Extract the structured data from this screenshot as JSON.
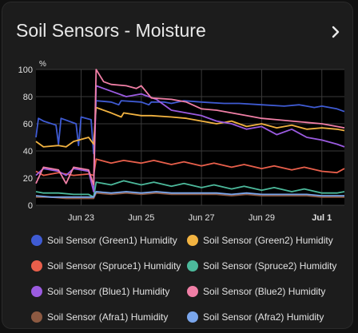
{
  "card": {
    "title": "Soil Sensors - Moisture",
    "more_icon": "chevron-right-icon"
  },
  "chart_data": {
    "type": "line",
    "title": "Soil Sensors - Moisture",
    "ylabel": "%",
    "ylim": [
      0,
      100
    ],
    "yticks": [
      0,
      20,
      40,
      60,
      80,
      100
    ],
    "xlim": [
      "2023-06-21T12:00",
      "2023-07-01T18:00"
    ],
    "xticks": [
      {
        "date": "2023-06-23",
        "label": "Jun 23",
        "bold": false
      },
      {
        "date": "2023-06-25",
        "label": "Jun 25",
        "bold": false
      },
      {
        "date": "2023-06-27",
        "label": "Jun 27",
        "bold": false
      },
      {
        "date": "2023-06-29",
        "label": "Jun 29",
        "bold": false
      },
      {
        "date": "2023-07-01",
        "label": "Jul 1",
        "bold": true
      }
    ],
    "grid": true,
    "legend_position": "bottom",
    "series": [
      {
        "name": "Soil Sensor (Green1) Humidity",
        "color": "#3f5bd3",
        "points": [
          [
            "2023-06-21T12:00",
            50
          ],
          [
            "2023-06-21T14:00",
            64
          ],
          [
            "2023-06-21T18:00",
            62
          ],
          [
            "2023-06-22T04:00",
            59
          ],
          [
            "2023-06-22T06:00",
            45
          ],
          [
            "2023-06-22T08:00",
            64
          ],
          [
            "2023-06-22T20:00",
            60
          ],
          [
            "2023-06-22T22:00",
            44
          ],
          [
            "2023-06-23T00:00",
            65
          ],
          [
            "2023-06-23T08:00",
            63
          ],
          [
            "2023-06-23T10:00",
            38
          ],
          [
            "2023-06-23T12:00",
            77
          ],
          [
            "2023-06-24T00:00",
            76
          ],
          [
            "2023-06-24T06:00",
            74
          ],
          [
            "2023-06-24T08:00",
            77
          ],
          [
            "2023-06-25T00:00",
            76
          ],
          [
            "2023-06-25T06:00",
            74
          ],
          [
            "2023-06-25T08:00",
            76
          ],
          [
            "2023-06-25T18:00",
            76
          ],
          [
            "2023-06-26T00:00",
            75
          ],
          [
            "2023-06-26T10:00",
            77
          ],
          [
            "2023-06-27T00:00",
            76
          ],
          [
            "2023-06-27T18:00",
            75
          ],
          [
            "2023-06-28T06:00",
            75
          ],
          [
            "2023-06-29T00:00",
            74
          ],
          [
            "2023-06-29T18:00",
            73
          ],
          [
            "2023-06-30T06:00",
            74
          ],
          [
            "2023-06-30T18:00",
            72
          ],
          [
            "2023-07-01T00:00",
            73
          ],
          [
            "2023-07-01T12:00",
            71
          ],
          [
            "2023-07-01T18:00",
            69
          ]
        ]
      },
      {
        "name": "Soil Sensor (Green2) Humidity",
        "color": "#f2b341",
        "points": [
          [
            "2023-06-21T12:00",
            47
          ],
          [
            "2023-06-21T18:00",
            43
          ],
          [
            "2023-06-22T06:00",
            44
          ],
          [
            "2023-06-22T12:00",
            43
          ],
          [
            "2023-06-22T18:00",
            47
          ],
          [
            "2023-06-23T06:00",
            50
          ],
          [
            "2023-06-23T10:00",
            45
          ],
          [
            "2023-06-23T12:00",
            72
          ],
          [
            "2023-06-24T00:00",
            68
          ],
          [
            "2023-06-24T08:00",
            65
          ],
          [
            "2023-06-24T10:00",
            68
          ],
          [
            "2023-06-25T00:00",
            66
          ],
          [
            "2023-06-25T08:00",
            66
          ],
          [
            "2023-06-26T00:00",
            65
          ],
          [
            "2023-06-26T12:00",
            64
          ],
          [
            "2023-06-27T00:00",
            62
          ],
          [
            "2023-06-27T12:00",
            60
          ],
          [
            "2023-06-28T00:00",
            62
          ],
          [
            "2023-06-28T12:00",
            58
          ],
          [
            "2023-06-29T00:00",
            60
          ],
          [
            "2023-06-29T12:00",
            57
          ],
          [
            "2023-06-30T00:00",
            59
          ],
          [
            "2023-06-30T12:00",
            56
          ],
          [
            "2023-07-01T00:00",
            57
          ],
          [
            "2023-07-01T12:00",
            56
          ],
          [
            "2023-07-01T18:00",
            55
          ]
        ]
      },
      {
        "name": "Soil Sensor (Spruce1) Humidity",
        "color": "#e85f4b",
        "points": [
          [
            "2023-06-21T12:00",
            25
          ],
          [
            "2023-06-21T18:00",
            22
          ],
          [
            "2023-06-22T06:00",
            24
          ],
          [
            "2023-06-22T18:00",
            22
          ],
          [
            "2023-06-23T06:00",
            23
          ],
          [
            "2023-06-23T10:00",
            22
          ],
          [
            "2023-06-23T12:00",
            34
          ],
          [
            "2023-06-24T00:00",
            31
          ],
          [
            "2023-06-24T10:00",
            33
          ],
          [
            "2023-06-25T00:00",
            31
          ],
          [
            "2023-06-25T10:00",
            33
          ],
          [
            "2023-06-26T00:00",
            30
          ],
          [
            "2023-06-26T10:00",
            32
          ],
          [
            "2023-06-27T00:00",
            29
          ],
          [
            "2023-06-27T10:00",
            31
          ],
          [
            "2023-06-28T00:00",
            28
          ],
          [
            "2023-06-28T10:00",
            30
          ],
          [
            "2023-06-29T00:00",
            27
          ],
          [
            "2023-06-29T10:00",
            29
          ],
          [
            "2023-06-30T00:00",
            26
          ],
          [
            "2023-06-30T10:00",
            28
          ],
          [
            "2023-07-01T00:00",
            25
          ],
          [
            "2023-07-01T12:00",
            24
          ],
          [
            "2023-07-01T18:00",
            27
          ]
        ]
      },
      {
        "name": "Soil Sensor (Spruce2) Humidity",
        "color": "#4cb99b",
        "points": [
          [
            "2023-06-21T12:00",
            10
          ],
          [
            "2023-06-21T18:00",
            9
          ],
          [
            "2023-06-22T06:00",
            9
          ],
          [
            "2023-06-22T18:00",
            8
          ],
          [
            "2023-06-23T06:00",
            8
          ],
          [
            "2023-06-23T10:00",
            6
          ],
          [
            "2023-06-23T12:00",
            17
          ],
          [
            "2023-06-24T00:00",
            15
          ],
          [
            "2023-06-24T10:00",
            18
          ],
          [
            "2023-06-25T00:00",
            15
          ],
          [
            "2023-06-25T10:00",
            17
          ],
          [
            "2023-06-26T00:00",
            14
          ],
          [
            "2023-06-26T10:00",
            16
          ],
          [
            "2023-06-27T00:00",
            13
          ],
          [
            "2023-06-27T10:00",
            15
          ],
          [
            "2023-06-28T00:00",
            12
          ],
          [
            "2023-06-28T10:00",
            14
          ],
          [
            "2023-06-29T00:00",
            11
          ],
          [
            "2023-06-29T10:00",
            13
          ],
          [
            "2023-06-30T00:00",
            10
          ],
          [
            "2023-06-30T10:00",
            12
          ],
          [
            "2023-07-01T00:00",
            9
          ],
          [
            "2023-07-01T12:00",
            9
          ],
          [
            "2023-07-01T18:00",
            10
          ]
        ]
      },
      {
        "name": "Soil Sensor (Blue1) Humidity",
        "color": "#9b5be0",
        "points": [
          [
            "2023-06-21T12:00",
            22
          ],
          [
            "2023-06-21T18:00",
            27
          ],
          [
            "2023-06-22T06:00",
            25
          ],
          [
            "2023-06-22T12:00",
            22
          ],
          [
            "2023-06-22T18:00",
            27
          ],
          [
            "2023-06-23T06:00",
            25
          ],
          [
            "2023-06-23T10:00",
            10
          ],
          [
            "2023-06-23T12:00",
            88
          ],
          [
            "2023-06-24T00:00",
            84
          ],
          [
            "2023-06-24T12:00",
            80
          ],
          [
            "2023-06-25T00:00",
            82
          ],
          [
            "2023-06-25T12:00",
            78
          ],
          [
            "2023-06-26T00:00",
            70
          ],
          [
            "2023-06-26T12:00",
            68
          ],
          [
            "2023-06-27T00:00",
            66
          ],
          [
            "2023-06-27T12:00",
            62
          ],
          [
            "2023-06-28T00:00",
            60
          ],
          [
            "2023-06-28T12:00",
            56
          ],
          [
            "2023-06-29T00:00",
            58
          ],
          [
            "2023-06-29T12:00",
            52
          ],
          [
            "2023-06-30T00:00",
            56
          ],
          [
            "2023-06-30T12:00",
            50
          ],
          [
            "2023-07-01T00:00",
            48
          ],
          [
            "2023-07-01T12:00",
            45
          ],
          [
            "2023-07-01T18:00",
            43
          ]
        ]
      },
      {
        "name": "Soil Sensor (Blue2) Humidity",
        "color": "#f07fa6",
        "points": [
          [
            "2023-06-21T12:00",
            16
          ],
          [
            "2023-06-21T18:00",
            28
          ],
          [
            "2023-06-22T06:00",
            26
          ],
          [
            "2023-06-22T12:00",
            16
          ],
          [
            "2023-06-22T18:00",
            28
          ],
          [
            "2023-06-23T06:00",
            26
          ],
          [
            "2023-06-23T10:00",
            15
          ],
          [
            "2023-06-23T12:00",
            100
          ],
          [
            "2023-06-23T18:00",
            91
          ],
          [
            "2023-06-24T00:00",
            89
          ],
          [
            "2023-06-24T12:00",
            88
          ],
          [
            "2023-06-24T20:00",
            86
          ],
          [
            "2023-06-25T00:00",
            88
          ],
          [
            "2023-06-25T08:00",
            79
          ],
          [
            "2023-06-26T00:00",
            78
          ],
          [
            "2023-06-26T12:00",
            76
          ],
          [
            "2023-06-27T00:00",
            71
          ],
          [
            "2023-06-27T12:00",
            70
          ],
          [
            "2023-06-28T00:00",
            68
          ],
          [
            "2023-06-28T12:00",
            66
          ],
          [
            "2023-06-29T00:00",
            64
          ],
          [
            "2023-06-29T12:00",
            63
          ],
          [
            "2023-06-30T00:00",
            62
          ],
          [
            "2023-06-30T12:00",
            61
          ],
          [
            "2023-07-01T00:00",
            60
          ],
          [
            "2023-07-01T12:00",
            58
          ],
          [
            "2023-07-01T18:00",
            57
          ]
        ]
      },
      {
        "name": "Soil Sensor (Afra1) Humidity",
        "color": "#8d5a42",
        "points": [
          [
            "2023-06-21T12:00",
            6
          ],
          [
            "2023-06-22T00:00",
            6
          ],
          [
            "2023-06-22T12:00",
            5
          ],
          [
            "2023-06-23T00:00",
            5
          ],
          [
            "2023-06-23T10:00",
            5
          ],
          [
            "2023-06-23T12:00",
            9
          ],
          [
            "2023-06-24T00:00",
            8
          ],
          [
            "2023-06-24T12:00",
            9
          ],
          [
            "2023-06-25T00:00",
            8
          ],
          [
            "2023-06-25T12:00",
            9
          ],
          [
            "2023-06-26T00:00",
            8
          ],
          [
            "2023-06-26T12:00",
            8
          ],
          [
            "2023-06-27T00:00",
            8
          ],
          [
            "2023-06-27T12:00",
            8
          ],
          [
            "2023-06-28T00:00",
            7
          ],
          [
            "2023-06-28T12:00",
            8
          ],
          [
            "2023-06-29T00:00",
            7
          ],
          [
            "2023-06-29T12:00",
            7
          ],
          [
            "2023-06-30T00:00",
            7
          ],
          [
            "2023-06-30T12:00",
            7
          ],
          [
            "2023-07-01T00:00",
            6
          ],
          [
            "2023-07-01T12:00",
            6
          ],
          [
            "2023-07-01T18:00",
            6
          ]
        ]
      },
      {
        "name": "Soil Sensor (Afra2) Humidity",
        "color": "#7aa6ec",
        "points": [
          [
            "2023-06-21T12:00",
            7
          ],
          [
            "2023-06-22T00:00",
            6
          ],
          [
            "2023-06-22T12:00",
            6
          ],
          [
            "2023-06-23T00:00",
            6
          ],
          [
            "2023-06-23T10:00",
            6
          ],
          [
            "2023-06-23T12:00",
            10
          ],
          [
            "2023-06-24T00:00",
            9
          ],
          [
            "2023-06-24T12:00",
            10
          ],
          [
            "2023-06-25T00:00",
            9
          ],
          [
            "2023-06-25T12:00",
            10
          ],
          [
            "2023-06-26T00:00",
            9
          ],
          [
            "2023-06-26T12:00",
            9
          ],
          [
            "2023-06-27T00:00",
            9
          ],
          [
            "2023-06-27T12:00",
            9
          ],
          [
            "2023-06-28T00:00",
            8
          ],
          [
            "2023-06-28T12:00",
            9
          ],
          [
            "2023-06-29T00:00",
            8
          ],
          [
            "2023-06-29T12:00",
            8
          ],
          [
            "2023-06-30T00:00",
            8
          ],
          [
            "2023-06-30T12:00",
            8
          ],
          [
            "2023-07-01T00:00",
            7
          ],
          [
            "2023-07-01T12:00",
            7
          ],
          [
            "2023-07-01T18:00",
            7
          ]
        ]
      }
    ]
  }
}
